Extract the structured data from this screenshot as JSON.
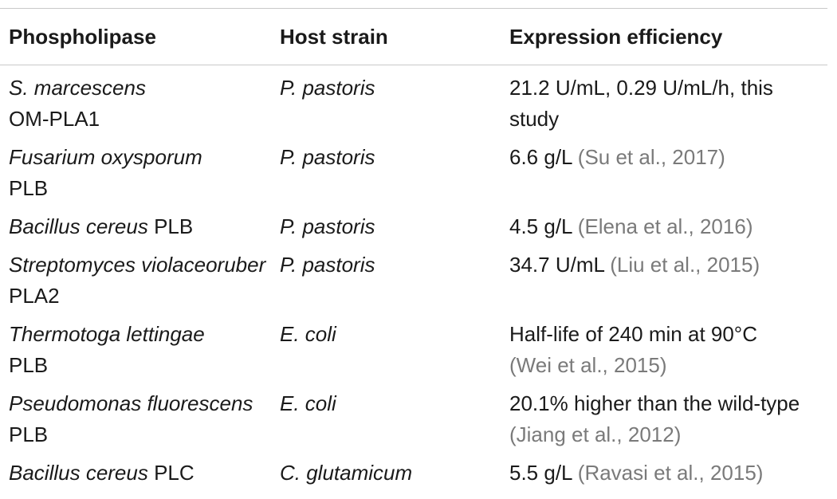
{
  "header": {
    "col1": "Phospholipase",
    "col2": "Host strain",
    "col3": "Expression efficiency"
  },
  "rows": [
    {
      "enzyme_italic": "S. marcescens",
      "enzyme_plain": "OM-PLA1",
      "host": "P. pastoris",
      "efficiency": "21.2 U/mL, 0.29 U/mL/h, this study",
      "citation": ""
    },
    {
      "enzyme_italic": "Fusarium oxysporum",
      "enzyme_plain": "PLB",
      "host": "P. pastoris",
      "efficiency": "6.6 g/L ",
      "citation": "(Su et al., 2017)"
    },
    {
      "enzyme_italic": "Bacillus cereus",
      "enzyme_plain": " PLB",
      "host": "P. pastoris",
      "efficiency": "4.5 g/L ",
      "citation": "(Elena et al., 2016)"
    },
    {
      "enzyme_italic": "Streptomyces violaceoruber",
      "enzyme_plain": " PLA2",
      "host": "P. pastoris",
      "efficiency": "34.7 U/mL ",
      "citation": "(Liu et al., 2015)"
    },
    {
      "enzyme_italic": "Thermotoga lettingae",
      "enzyme_plain": "PLB",
      "host": "E. coli",
      "efficiency": "Half-life of 240 min at 90°C",
      "citation": "(Wei et al., 2015)"
    },
    {
      "enzyme_italic": "Pseudomonas fluorescens",
      "enzyme_plain": " PLB",
      "host": "E. coli",
      "efficiency": "20.1% higher than the wild-type ",
      "citation": "(Jiang et al., 2012)"
    },
    {
      "enzyme_italic": "Bacillus cereus",
      "enzyme_plain": " PLC",
      "host": "C. glutamicum",
      "efficiency": "5.5 g/L ",
      "citation": "(Ravasi et al., 2015)"
    }
  ],
  "colors": {
    "text": "#1a1a1a",
    "citation": "#7a7a7a",
    "rule": "#c8c8c8"
  }
}
